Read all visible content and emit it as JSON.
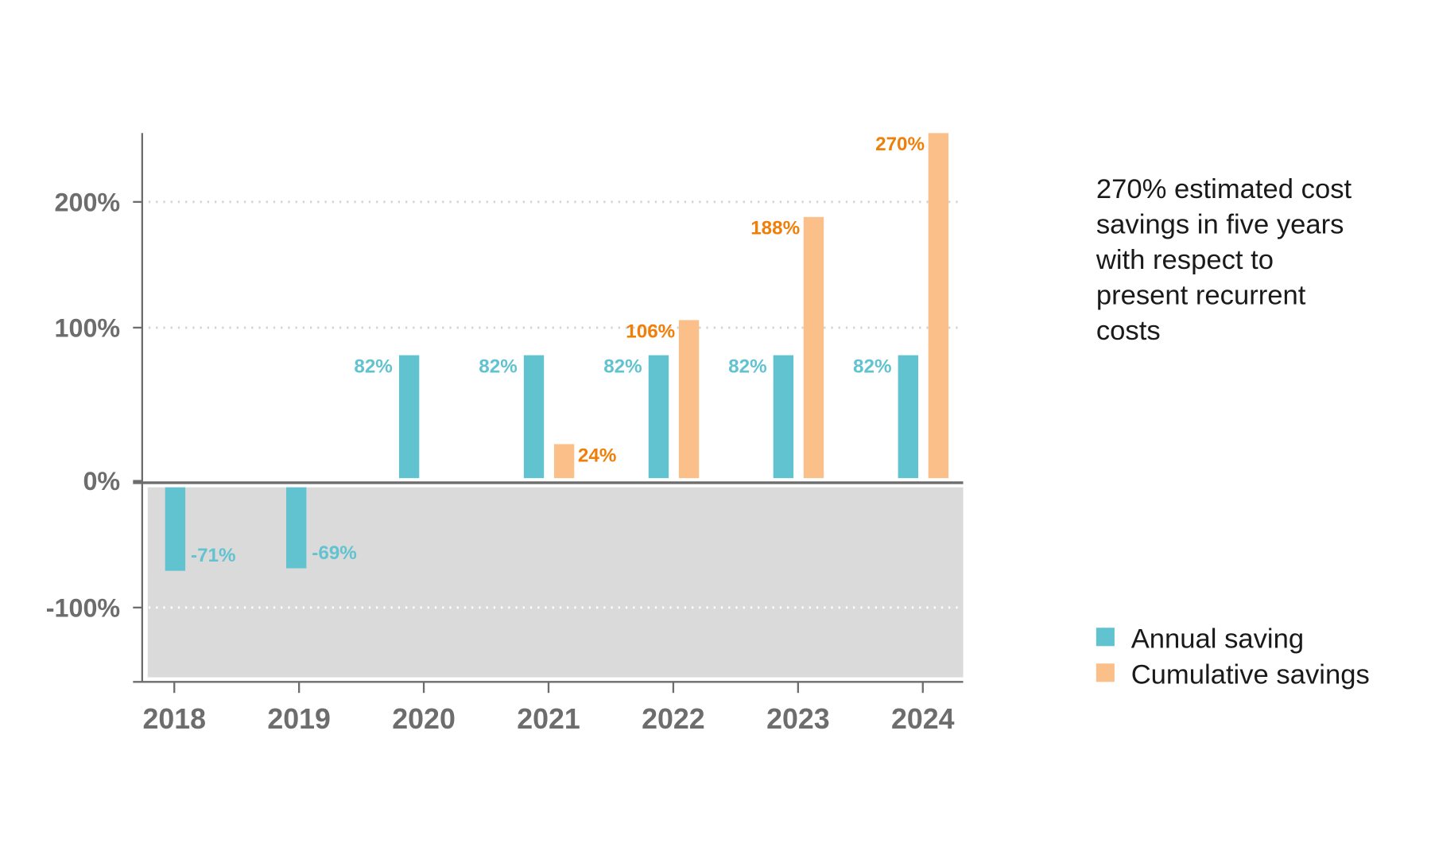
{
  "chart_data": {
    "type": "bar",
    "categories": [
      "2018",
      "2019",
      "2020",
      "2021",
      "2022",
      "2023",
      "2024"
    ],
    "series": [
      {
        "name": "Annual saving",
        "values": [
          -71,
          -69,
          82,
          82,
          82,
          82,
          82
        ],
        "labels": [
          "-71%",
          "-69%",
          "82%",
          "82%",
          "82%",
          "82%",
          "82%"
        ],
        "color": "#62c3d0",
        "label_color": "#62c3d0"
      },
      {
        "name": "Cumulative savings",
        "values": [
          null,
          null,
          null,
          24,
          106,
          188,
          270
        ],
        "labels": [
          "",
          "",
          "",
          "24%",
          "106%",
          "188%",
          "270%"
        ],
        "color": "#fbc08a",
        "label_color": "#f07f09"
      }
    ],
    "yticks": [
      -100,
      0,
      100,
      200
    ],
    "ytick_labels": [
      "-100%",
      "0%",
      "100%",
      "200%"
    ],
    "ylim": [
      -130,
      270
    ],
    "grid": "dotted horizontal",
    "negative_region_color": "#dadada",
    "legend_placement": "right",
    "annotation": [
      "270% estimated cost",
      "savings in five years",
      "with respect to",
      "present recurrent",
      "costs"
    ]
  }
}
